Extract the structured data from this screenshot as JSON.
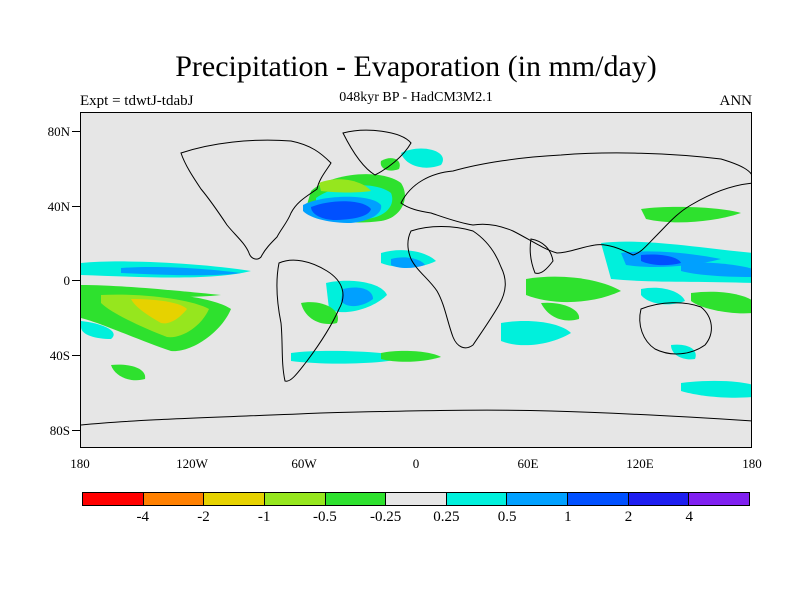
{
  "title": "Precipitation - Evaporation (in mm/day)",
  "subtitle": "048kyr BP - HadCM3M2.1",
  "expt_label": "Expt = tdwtJ-tdabJ",
  "season": "ANN",
  "lat_labels": [
    "80N",
    "40N",
    "0",
    "40S",
    "80S"
  ],
  "lon_labels": [
    "180",
    "120W",
    "60W",
    "0",
    "60E",
    "120E",
    "180"
  ],
  "legend": {
    "colors": [
      "#ff0000",
      "#ff8000",
      "#e6d200",
      "#96e61e",
      "#2ee12e",
      "#e6e6e6",
      "#00f0dc",
      "#00a0ff",
      "#0050ff",
      "#1e1ef0",
      "#8020f0"
    ],
    "labels": [
      "-4",
      "-2",
      "-1",
      "-0.5",
      "-0.25",
      "0.25",
      "0.5",
      "1",
      "2",
      "4"
    ]
  },
  "colors": {
    "background": "#e6e6e6",
    "land_outline": "#000000"
  }
}
